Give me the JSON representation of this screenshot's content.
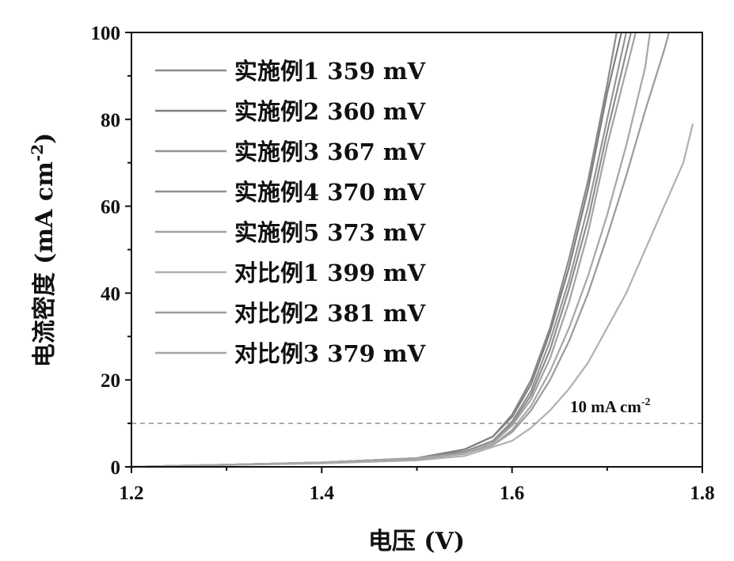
{
  "chart_data": {
    "type": "line",
    "xlabel": "电压 (V)",
    "ylabel": "电流密度 (mA cm",
    "ylabel_sup": "-2",
    "ylabel_end": ")",
    "xlim": [
      1.2,
      1.8
    ],
    "ylim": [
      0,
      100
    ],
    "xticks": [
      "1.2",
      "1.4",
      "1.6",
      "1.8"
    ],
    "yticks": [
      "0",
      "20",
      "40",
      "60",
      "80",
      "100"
    ],
    "grid": false,
    "legend_position": "top-left",
    "reference_line": {
      "y": 10,
      "label": "10 mA cm",
      "label_sup": "-2"
    },
    "series": [
      {
        "name": "实施例1 359 mV",
        "color": "#8a8a8a",
        "x": [
          1.2,
          1.3,
          1.4,
          1.5,
          1.55,
          1.58,
          1.6,
          1.62,
          1.64,
          1.66,
          1.68,
          1.7,
          1.71
        ],
        "y": [
          0,
          0.5,
          1,
          2,
          4,
          7,
          12,
          20,
          32,
          48,
          66,
          88,
          100
        ]
      },
      {
        "name": "实施例2 360 mV",
        "color": "#7f7f7f",
        "x": [
          1.2,
          1.3,
          1.4,
          1.5,
          1.55,
          1.58,
          1.6,
          1.62,
          1.64,
          1.66,
          1.68,
          1.7,
          1.715
        ],
        "y": [
          0,
          0.5,
          1,
          2,
          4,
          7,
          11.5,
          19,
          31,
          46,
          64,
          86,
          100
        ]
      },
      {
        "name": "实施例3 367 mV",
        "color": "#959595",
        "x": [
          1.2,
          1.3,
          1.4,
          1.5,
          1.55,
          1.58,
          1.6,
          1.62,
          1.64,
          1.66,
          1.68,
          1.7,
          1.72
        ],
        "y": [
          0,
          0.5,
          1,
          2,
          3.5,
          6,
          10.5,
          17.5,
          29,
          43,
          60,
          80,
          100
        ]
      },
      {
        "name": "实施例4 370 mV",
        "color": "#8d8d8d",
        "x": [
          1.2,
          1.3,
          1.4,
          1.5,
          1.55,
          1.58,
          1.6,
          1.62,
          1.64,
          1.66,
          1.68,
          1.7,
          1.725
        ],
        "y": [
          0,
          0.5,
          1,
          2,
          3.5,
          6,
          10,
          16.5,
          27,
          41,
          57,
          77,
          100
        ]
      },
      {
        "name": "实施例5 373 mV",
        "color": "#a2a2a2",
        "x": [
          1.2,
          1.3,
          1.4,
          1.5,
          1.55,
          1.58,
          1.6,
          1.62,
          1.64,
          1.66,
          1.68,
          1.7,
          1.73
        ],
        "y": [
          0,
          0.5,
          1,
          2,
          3,
          5.5,
          9.5,
          15.5,
          25,
          38,
          54,
          74,
          100
        ]
      },
      {
        "name": "对比例1 399 mV",
        "color": "#b0b0b0",
        "x": [
          1.2,
          1.3,
          1.4,
          1.5,
          1.55,
          1.6,
          1.62,
          1.64,
          1.66,
          1.68,
          1.7,
          1.72,
          1.74,
          1.76,
          1.78,
          1.79
        ],
        "y": [
          0,
          0.4,
          0.8,
          1.5,
          2.5,
          6,
          9,
          13,
          18,
          24,
          32,
          40,
          50,
          60,
          70,
          79
        ]
      },
      {
        "name": "对比例2 381 mV",
        "color": "#9a9a9a",
        "x": [
          1.2,
          1.3,
          1.4,
          1.5,
          1.55,
          1.58,
          1.6,
          1.62,
          1.64,
          1.66,
          1.68,
          1.7,
          1.72,
          1.74,
          1.76,
          1.765
        ],
        "y": [
          0,
          0.5,
          1,
          1.8,
          3,
          5,
          8,
          13,
          20,
          29,
          40,
          53,
          67,
          82,
          96,
          100
        ]
      },
      {
        "name": "对比例3 379 mV",
        "color": "#a6a6a6",
        "x": [
          1.2,
          1.3,
          1.4,
          1.5,
          1.55,
          1.58,
          1.6,
          1.62,
          1.64,
          1.66,
          1.68,
          1.7,
          1.72,
          1.74,
          1.745
        ],
        "y": [
          0,
          0.5,
          1,
          1.9,
          3,
          5,
          8.5,
          14,
          22,
          32,
          44,
          58,
          74,
          92,
          100
        ]
      }
    ]
  }
}
